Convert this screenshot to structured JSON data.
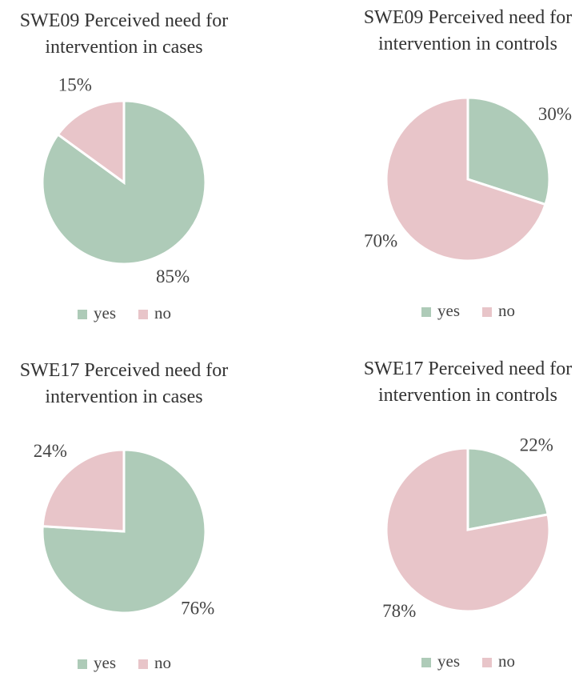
{
  "chart_data": [
    {
      "type": "pie",
      "title": "SWE09 Perceived need for intervention in cases",
      "categories": [
        "yes",
        "no"
      ],
      "values": [
        85,
        15
      ],
      "value_labels": [
        "85%",
        "15%"
      ],
      "colors": [
        "#aecbb8",
        "#e8c5c9"
      ]
    },
    {
      "type": "pie",
      "title": "SWE09 Perceived need for intervention in controls",
      "categories": [
        "yes",
        "no"
      ],
      "values": [
        30,
        70
      ],
      "value_labels": [
        "30%",
        "70%"
      ],
      "colors": [
        "#aecbb8",
        "#e8c5c9"
      ]
    },
    {
      "type": "pie",
      "title": "SWE17 Perceived need for intervention in cases",
      "categories": [
        "yes",
        "no"
      ],
      "values": [
        76,
        24
      ],
      "value_labels": [
        "76%",
        "24%"
      ],
      "colors": [
        "#aecbb8",
        "#e8c5c9"
      ]
    },
    {
      "type": "pie",
      "title": "SWE17 Perceived need for intervention in controls",
      "categories": [
        "yes",
        "no"
      ],
      "values": [
        22,
        78
      ],
      "value_labels": [
        "22%",
        "78%"
      ],
      "colors": [
        "#aecbb8",
        "#e8c5c9"
      ]
    }
  ]
}
